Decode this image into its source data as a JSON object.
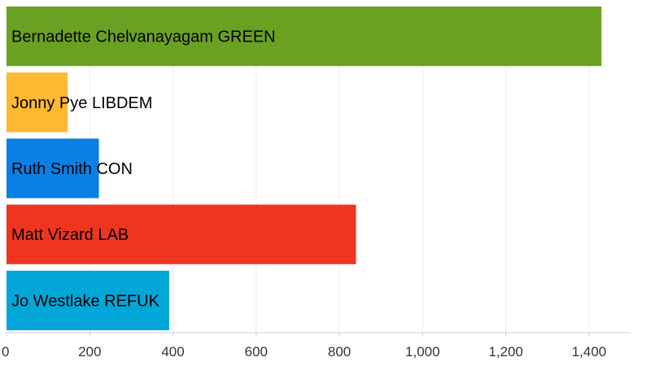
{
  "chart_data": {
    "type": "bar",
    "orientation": "horizontal",
    "categories": [
      "Bernadette Chelvanayagam GREEN",
      "Jonny Pye LIBDEM",
      "Ruth Smith CON",
      "Matt Vizard LAB",
      "Jo Westlake REFUK"
    ],
    "values": [
      1430,
      147,
      222,
      840,
      391
    ],
    "colors": [
      "#6ba122",
      "#fdb930",
      "#0880e4",
      "#ee3520",
      "#02a6d8"
    ],
    "xlim": [
      0,
      1500
    ],
    "ticks": [
      0,
      200,
      400,
      600,
      800,
      1000,
      1200,
      1400
    ],
    "tick_labels": [
      "0",
      "200",
      "400",
      "600",
      "800",
      "1,000",
      "1,200",
      "1,400"
    ],
    "grid": true,
    "legend": "none"
  }
}
